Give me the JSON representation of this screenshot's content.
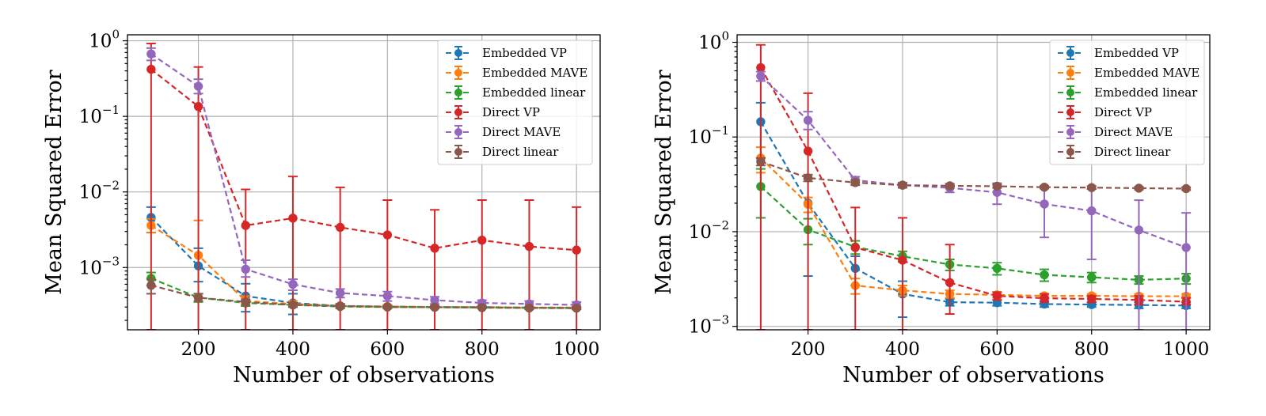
{
  "chart_data": [
    {
      "type": "line",
      "title": "",
      "xlabel": "Number of observations",
      "ylabel": "Mean Squared Error",
      "y_scale": "log",
      "xlim": [
        50,
        1050
      ],
      "ylim": [
        0.00015,
        1.2
      ],
      "x_ticks": [
        200,
        400,
        600,
        800,
        1000
      ],
      "x_tick_labels": [
        "200",
        "400",
        "600",
        "800",
        "1000"
      ],
      "y_ticks": [
        0.001,
        0.01,
        0.1,
        1
      ],
      "y_tick_labels": [
        {
          "base": "10",
          "exp": "−3"
        },
        {
          "base": "10",
          "exp": "−2"
        },
        {
          "base": "10",
          "exp": "−1"
        },
        {
          "base": "10",
          "exp": "0"
        }
      ],
      "grid": true,
      "legend_position": "top-right",
      "x": [
        100,
        200,
        300,
        400,
        500,
        600,
        700,
        800,
        900,
        1000
      ],
      "series": [
        {
          "name": "Embedded VP",
          "color": "#1f77b4",
          "values": [
            0.0046,
            0.00105,
            0.00042,
            0.00034,
            0.00031,
            0.000305,
            0.0003,
            0.0003,
            0.000295,
            0.000295
          ],
          "err_low": [
            0.0029,
            0.00065,
            0.00026,
            0.00024,
            0.00029,
            0.00029,
            0.00029,
            0.00029,
            0.00029,
            0.00029
          ],
          "err_high": [
            0.0063,
            0.0018,
            0.00061,
            0.00045,
            0.00033,
            0.00032,
            0.00031,
            0.00031,
            0.0003,
            0.0003
          ]
        },
        {
          "name": "Embedded MAVE",
          "color": "#ff7f0e",
          "values": [
            0.0036,
            0.00145,
            0.00036,
            0.00033,
            0.00031,
            0.000305,
            0.0003,
            0.0003,
            0.000295,
            0.000295
          ],
          "err_low": [
            0.0029,
            0.00045,
            0.00031,
            0.0003,
            0.00029,
            0.00029,
            0.00029,
            0.00029,
            0.00029,
            0.00029
          ],
          "err_high": [
            0.0044,
            0.0042,
            0.00042,
            0.00036,
            0.00033,
            0.00032,
            0.00031,
            0.00031,
            0.0003,
            0.0003
          ]
        },
        {
          "name": "Embedded linear",
          "color": "#2ca02c",
          "values": [
            0.00072,
            0.0004,
            0.00034,
            0.00032,
            0.000305,
            0.0003,
            0.000298,
            0.000295,
            0.000292,
            0.00029
          ],
          "err_low": [
            0.00058,
            0.00035,
            0.00031,
            0.0003,
            0.00029,
            0.00029,
            0.00029,
            0.00029,
            0.00028,
            0.00028
          ],
          "err_high": [
            0.00086,
            0.00045,
            0.00037,
            0.00034,
            0.00032,
            0.00031,
            0.00031,
            0.0003,
            0.0003,
            0.0003
          ]
        },
        {
          "name": "Direct VP",
          "color": "#d62728",
          "values": [
            0.42,
            0.135,
            0.0036,
            0.0045,
            0.0034,
            0.0027,
            0.0018,
            0.0023,
            0.0019,
            0.0017
          ],
          "err_low": [
            0.00015,
            0.00015,
            0.00015,
            0.00015,
            0.00015,
            0.00015,
            0.00015,
            0.00015,
            0.00015,
            0.00015
          ],
          "err_high": [
            0.92,
            0.45,
            0.0108,
            0.016,
            0.0115,
            0.0078,
            0.0058,
            0.0078,
            0.0078,
            0.0063
          ]
        },
        {
          "name": "Direct MAVE",
          "color": "#9467bd",
          "values": [
            0.67,
            0.25,
            0.00095,
            0.0006,
            0.00046,
            0.00042,
            0.00037,
            0.00034,
            0.00033,
            0.00032
          ],
          "err_low": [
            0.55,
            0.2,
            0.00075,
            0.0005,
            0.0004,
            0.00036,
            0.00033,
            0.00031,
            0.0003,
            0.0003
          ],
          "err_high": [
            0.8,
            0.31,
            0.00125,
            0.0007,
            0.00052,
            0.00048,
            0.00041,
            0.00037,
            0.00036,
            0.00035
          ]
        },
        {
          "name": "Direct linear",
          "color": "#8c564b",
          "values": [
            0.00058,
            0.0004,
            0.00035,
            0.00032,
            0.00031,
            0.0003,
            0.000298,
            0.000295,
            0.000292,
            0.00029
          ],
          "err_low": [
            0.00045,
            0.00036,
            0.00032,
            0.0003,
            0.00029,
            0.00029,
            0.00029,
            0.00029,
            0.00028,
            0.00028
          ],
          "err_high": [
            0.0007,
            0.00045,
            0.00038,
            0.00034,
            0.00033,
            0.00031,
            0.00031,
            0.0003,
            0.0003,
            0.0003
          ]
        }
      ]
    },
    {
      "type": "line",
      "title": "",
      "xlabel": "Number of observations",
      "ylabel": "Mean Squared Error",
      "y_scale": "log",
      "xlim": [
        50,
        1050
      ],
      "ylim": [
        0.00092,
        1.2
      ],
      "x_ticks": [
        200,
        400,
        600,
        800,
        1000
      ],
      "x_tick_labels": [
        "200",
        "400",
        "600",
        "800",
        "1000"
      ],
      "y_ticks": [
        0.001,
        0.01,
        0.1,
        1
      ],
      "y_tick_labels": [
        {
          "base": "10",
          "exp": "−3"
        },
        {
          "base": "10",
          "exp": "−2"
        },
        {
          "base": "10",
          "exp": "−1"
        },
        {
          "base": "10",
          "exp": "0"
        }
      ],
      "grid": true,
      "legend_position": "top-right",
      "x": [
        100,
        200,
        300,
        400,
        500,
        600,
        700,
        800,
        900,
        1000
      ],
      "series": [
        {
          "name": "Embedded VP",
          "color": "#1f77b4",
          "values": [
            0.145,
            0.02,
            0.0041,
            0.0022,
            0.0018,
            0.00178,
            0.00172,
            0.0017,
            0.00168,
            0.00166
          ],
          "err_low": [
            0.06,
            0.0034,
            0.0027,
            0.00125,
            0.00165,
            0.00165,
            0.0016,
            0.0016,
            0.00155,
            0.00155
          ],
          "err_high": [
            0.23,
            0.036,
            0.0055,
            0.003,
            0.00195,
            0.0019,
            0.00185,
            0.0018,
            0.0018,
            0.0018
          ]
        },
        {
          "name": "Embedded MAVE",
          "color": "#ff7f0e",
          "values": [
            0.06,
            0.0195,
            0.0027,
            0.0024,
            0.0022,
            0.00215,
            0.0021,
            0.0021,
            0.00208,
            0.00208
          ],
          "err_low": [
            0.042,
            0.016,
            0.0022,
            0.0021,
            0.002,
            0.002,
            0.002,
            0.002,
            0.00198,
            0.00198
          ],
          "err_high": [
            0.078,
            0.023,
            0.0032,
            0.0027,
            0.0024,
            0.0023,
            0.0022,
            0.0022,
            0.0022,
            0.0022
          ]
        },
        {
          "name": "Embedded linear",
          "color": "#2ca02c",
          "values": [
            0.03,
            0.0105,
            0.0069,
            0.0055,
            0.0045,
            0.0041,
            0.0035,
            0.0033,
            0.0031,
            0.0032
          ],
          "err_low": [
            0.014,
            0.0073,
            0.0058,
            0.0048,
            0.0039,
            0.0035,
            0.003,
            0.0029,
            0.0028,
            0.0028
          ],
          "err_high": [
            0.046,
            0.0137,
            0.008,
            0.0062,
            0.0051,
            0.0047,
            0.004,
            0.0037,
            0.0034,
            0.0036
          ]
        },
        {
          "name": "Direct VP",
          "color": "#d62728",
          "values": [
            0.54,
            0.071,
            0.0068,
            0.005,
            0.0029,
            0.0021,
            0.00198,
            0.00195,
            0.0019,
            0.00182
          ],
          "err_low": [
            0.00092,
            0.00092,
            0.00092,
            0.00092,
            0.00135,
            0.0019,
            0.0018,
            0.0018,
            0.0017,
            0.0017
          ],
          "err_high": [
            0.94,
            0.29,
            0.018,
            0.014,
            0.0073,
            0.0023,
            0.0022,
            0.0021,
            0.0021,
            0.002
          ]
        },
        {
          "name": "Direct MAVE",
          "color": "#9467bd",
          "values": [
            0.44,
            0.15,
            0.035,
            0.031,
            0.029,
            0.026,
            0.0196,
            0.0166,
            0.0104,
            0.0068
          ],
          "err_low": [
            0.39,
            0.12,
            0.033,
            0.029,
            0.026,
            0.0195,
            0.0087,
            0.0051,
            0.00092,
            0.00092
          ],
          "err_high": [
            0.49,
            0.185,
            0.038,
            0.033,
            0.032,
            0.0325,
            0.0305,
            0.0282,
            0.0215,
            0.0158
          ]
        },
        {
          "name": "Direct linear",
          "color": "#8c564b",
          "values": [
            0.055,
            0.037,
            0.033,
            0.031,
            0.0305,
            0.0302,
            0.0295,
            0.0292,
            0.0288,
            0.0285
          ],
          "err_low": [
            0.05,
            0.034,
            0.031,
            0.0295,
            0.029,
            0.029,
            0.0285,
            0.0282,
            0.0278,
            0.0275
          ],
          "err_high": [
            0.06,
            0.04,
            0.035,
            0.0325,
            0.032,
            0.0315,
            0.0305,
            0.0302,
            0.0298,
            0.0295
          ]
        }
      ]
    }
  ]
}
